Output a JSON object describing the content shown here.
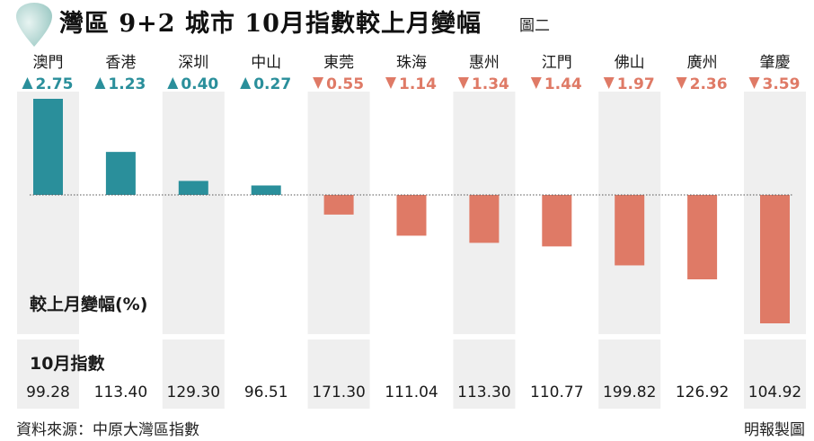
{
  "header": {
    "title": "灣區 9+2 城市 10月指數較上月變幅",
    "figure_label": "圖二",
    "drop_icon": "teardrop-icon"
  },
  "chart_data": {
    "type": "bar",
    "categories": [
      "澳門",
      "香港",
      "深圳",
      "中山",
      "東莞",
      "珠海",
      "惠州",
      "江門",
      "佛山",
      "廣州",
      "肇慶"
    ],
    "values": [
      2.75,
      1.23,
      0.4,
      0.27,
      -0.55,
      -1.14,
      -1.34,
      -1.44,
      -1.97,
      -2.36,
      -3.59
    ],
    "change_labels": [
      "2.75",
      "1.23",
      "0.40",
      "0.27",
      "0.55",
      "1.14",
      "1.34",
      "1.44",
      "1.97",
      "2.36",
      "3.59"
    ],
    "ylabel": "較上月變幅(%)",
    "ylim": [
      -3.59,
      2.75
    ],
    "grid": false,
    "index_title": "10月指數",
    "index_values": [
      "99.28",
      "113.40",
      "129.30",
      "96.51",
      "171.30",
      "111.04",
      "113.30",
      "110.77",
      "199.82",
      "126.92",
      "104.92"
    ],
    "colors": {
      "up": "#2a8f9b",
      "down": "#df7a66",
      "column_bg": "#efefef",
      "baseline": "#555555"
    }
  },
  "footer": {
    "source": "資料來源：中原大灣區指數",
    "credit": "明報製圖"
  }
}
